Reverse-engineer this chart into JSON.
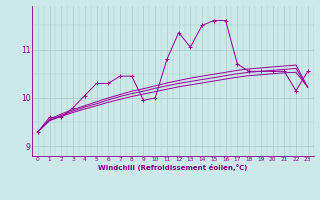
{
  "x": [
    0,
    1,
    2,
    3,
    4,
    5,
    6,
    7,
    8,
    9,
    10,
    11,
    12,
    13,
    14,
    15,
    16,
    17,
    18,
    19,
    20,
    21,
    22,
    23
  ],
  "line1": [
    9.3,
    9.6,
    9.6,
    9.8,
    10.05,
    10.3,
    10.3,
    10.45,
    10.45,
    9.95,
    10.0,
    10.8,
    11.35,
    11.05,
    11.5,
    11.6,
    11.6,
    10.7,
    10.55,
    10.55,
    10.55,
    10.55,
    10.15,
    10.55
  ],
  "line2_smooth": [
    9.3,
    9.53,
    9.62,
    9.7,
    9.77,
    9.84,
    9.91,
    9.97,
    10.03,
    10.08,
    10.13,
    10.18,
    10.23,
    10.27,
    10.31,
    10.35,
    10.39,
    10.43,
    10.46,
    10.48,
    10.5,
    10.52,
    10.53,
    10.22
  ],
  "line3_smooth": [
    9.3,
    9.54,
    9.64,
    9.73,
    9.81,
    9.88,
    9.96,
    10.03,
    10.09,
    10.14,
    10.2,
    10.25,
    10.3,
    10.34,
    10.38,
    10.42,
    10.46,
    10.5,
    10.53,
    10.55,
    10.57,
    10.59,
    10.61,
    10.22
  ],
  "line4_smooth": [
    9.3,
    9.56,
    9.67,
    9.76,
    9.84,
    9.92,
    10.0,
    10.07,
    10.14,
    10.19,
    10.25,
    10.31,
    10.36,
    10.41,
    10.45,
    10.49,
    10.53,
    10.57,
    10.6,
    10.62,
    10.64,
    10.66,
    10.68,
    10.22
  ],
  "line_color": "#990099",
  "bg_color": "#cce8e8",
  "grid_color": "#aacccc",
  "axis_color": "#880088",
  "xlabel": "Windchill (Refroidissement éolien,°C)",
  "ylim": [
    8.8,
    11.9
  ],
  "xlim": [
    -0.5,
    23.5
  ]
}
